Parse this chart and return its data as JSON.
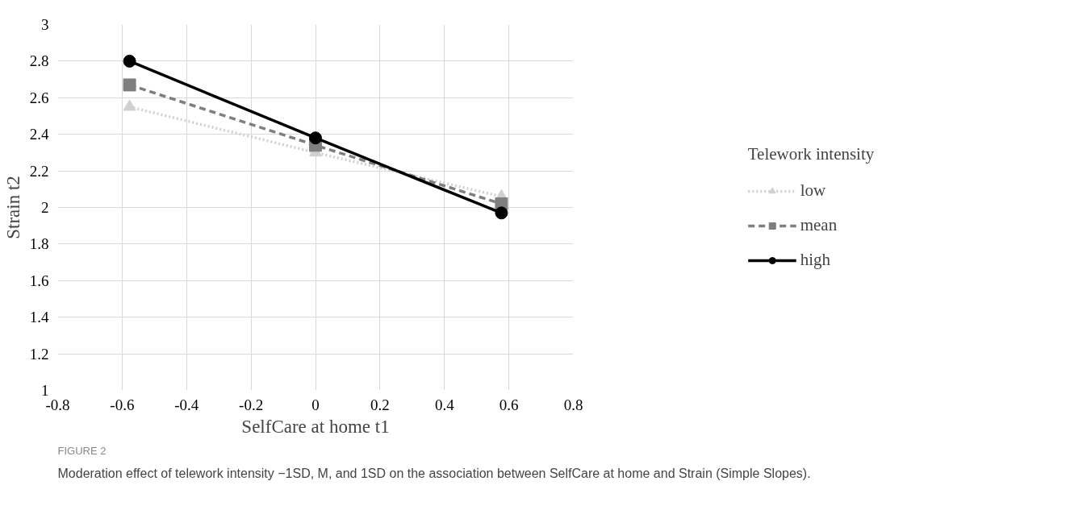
{
  "chart_data": {
    "type": "line",
    "xlabel": "SelfCare at home t1",
    "ylabel": "Strain t2",
    "legend_title": "Telework intensity",
    "x": [
      -0.577,
      0,
      0.577
    ],
    "series": [
      {
        "name": "low",
        "color": "#d0d0d0",
        "values": [
          2.55,
          2.3,
          2.06
        ],
        "marker": "triangle",
        "line_style": "dotted"
      },
      {
        "name": "mean",
        "color": "#7f7f7f",
        "values": [
          2.67,
          2.34,
          2.02
        ],
        "marker": "square",
        "line_style": "dashed"
      },
      {
        "name": "high",
        "color": "#000000",
        "values": [
          2.8,
          2.38,
          1.97
        ],
        "marker": "circle",
        "line_style": "solid"
      }
    ],
    "xlim": [
      -0.8,
      0.8
    ],
    "xticks": [
      -0.8,
      -0.6,
      -0.4,
      -0.2,
      0,
      0.2,
      0.4,
      0.6,
      0.8
    ],
    "ylim": [
      1,
      3
    ],
    "yticks": [
      1,
      1.2,
      1.4,
      1.6,
      1.8,
      2,
      2.2,
      2.4,
      2.6,
      2.8,
      3
    ],
    "grid": true,
    "legend": "right",
    "annotations": [
      "FIGURE 2",
      "Moderation effect of telework intensity −1SD, M, and 1SD on the association between SelfCare at home and Strain (Simple Slopes)."
    ]
  }
}
